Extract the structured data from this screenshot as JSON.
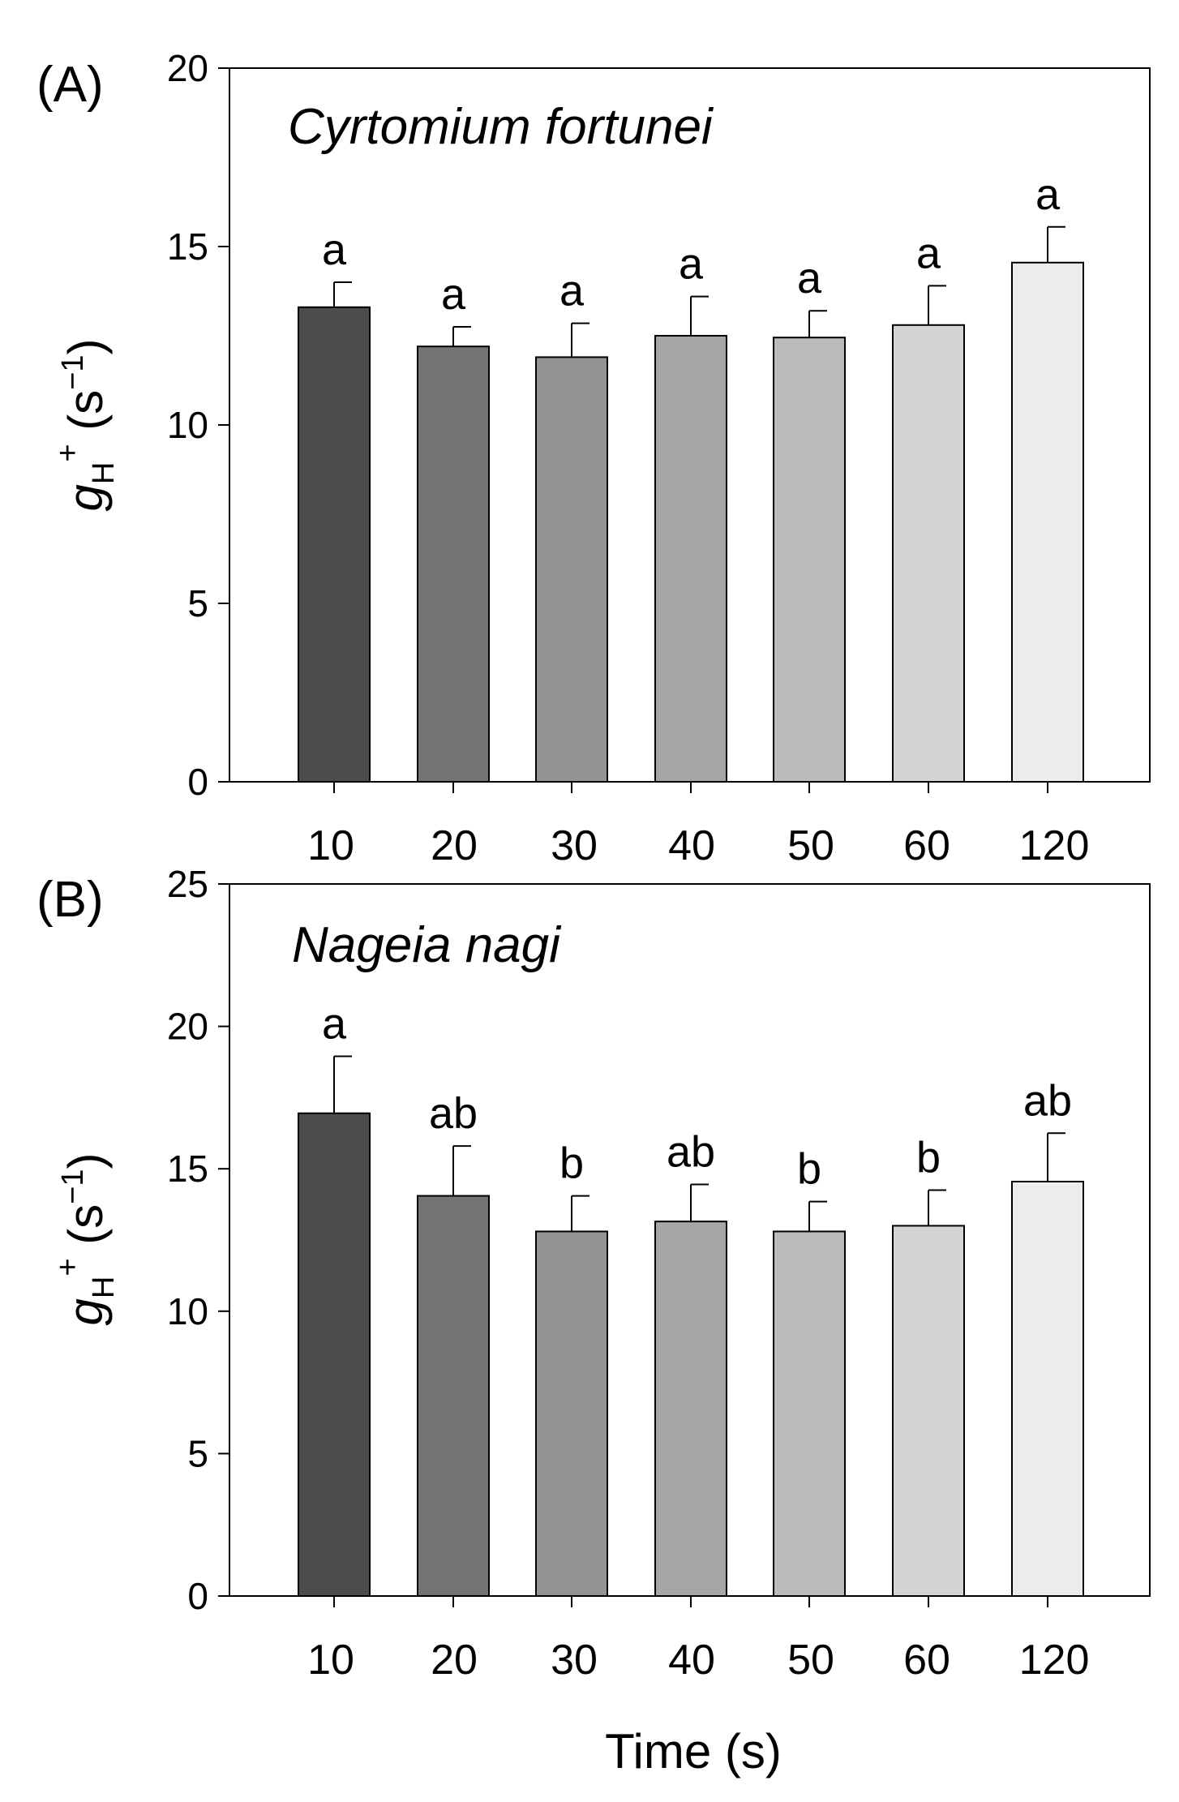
{
  "chart_data": [
    {
      "type": "bar",
      "panel_label": "(A)",
      "title": "Cyrtomium fortunei",
      "xlabel": "",
      "ylabel": {
        "symbol": "g",
        "subscript": "H",
        "superscript": "+",
        "unit_open": " (s",
        "unit_exp": "−1",
        "unit_close": ")"
      },
      "categories": [
        "10",
        "20",
        "30",
        "40",
        "50",
        "60",
        "120"
      ],
      "values": [
        13.3,
        12.2,
        11.9,
        12.5,
        12.45,
        12.8,
        14.55
      ],
      "errors": [
        0.7,
        0.55,
        0.95,
        1.1,
        0.75,
        1.1,
        1.0
      ],
      "significance": [
        "a",
        "a",
        "a",
        "a",
        "a",
        "a",
        "a"
      ],
      "colors": [
        "#4d4d4d",
        "#737373",
        "#939393",
        "#a6a6a6",
        "#bbbbbb",
        "#d4d4d4",
        "#ececec"
      ],
      "ylim": [
        0,
        20
      ],
      "yticks": [
        "0",
        "5",
        "10",
        "15",
        "20"
      ],
      "grid": false
    },
    {
      "type": "bar",
      "panel_label": "(B)",
      "title": "Nageia nagi",
      "xlabel": "Time (s)",
      "ylabel": {
        "symbol": "g",
        "subscript": "H",
        "superscript": "+",
        "unit_open": " (s",
        "unit_exp": "−1",
        "unit_close": ")"
      },
      "categories": [
        "10",
        "20",
        "30",
        "40",
        "50",
        "60",
        "120"
      ],
      "values": [
        16.95,
        14.05,
        12.8,
        13.15,
        12.8,
        13.0,
        14.55
      ],
      "errors": [
        2.0,
        1.75,
        1.25,
        1.3,
        1.05,
        1.25,
        1.7
      ],
      "significance": [
        "a",
        "ab",
        "b",
        "ab",
        "b",
        "b",
        "ab"
      ],
      "colors": [
        "#4d4d4d",
        "#737373",
        "#939393",
        "#a6a6a6",
        "#bbbbbb",
        "#d4d4d4",
        "#ececec"
      ],
      "ylim": [
        0,
        25
      ],
      "yticks": [
        "0",
        "5",
        "10",
        "15",
        "20",
        "25"
      ],
      "grid": false
    }
  ]
}
